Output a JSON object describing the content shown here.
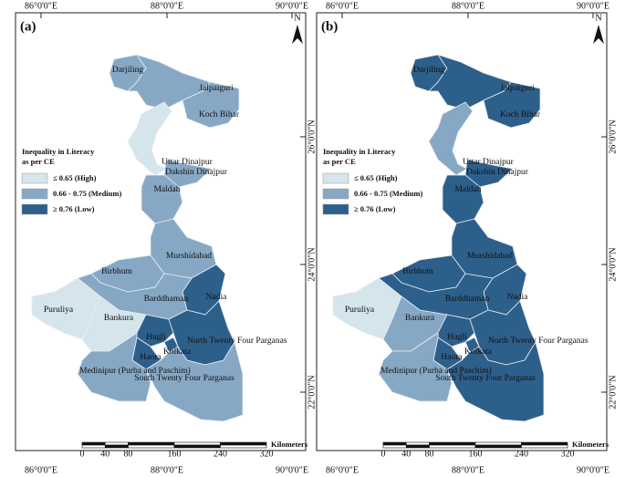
{
  "lon_ticks": [
    "86°0'0\"E",
    "88°0'0\"E",
    "90°0'0\"E"
  ],
  "lat_ticks": [
    "26°0'0\"N",
    "24°0'0\"N",
    "22°0'0\"N"
  ],
  "north": "N",
  "legend": {
    "title_lines": [
      "Inequality in Literacy",
      "as per CE"
    ],
    "items": [
      {
        "label": "≤ 0.65 (High)",
        "color": "#d4e5eb"
      },
      {
        "label": "0.66 - 0.75 (Medium)",
        "color": "#87a8c5"
      },
      {
        "label": "≥ 0.76 (Low)",
        "color": "#2d5f8b"
      }
    ]
  },
  "scale": {
    "unit": "Kilometers",
    "ticks": [
      0,
      40,
      80,
      160,
      240,
      320
    ]
  },
  "districts": [
    "Darjiling",
    "Jalpaiguri",
    "Koch Bihar",
    "Uttar Dinajpur",
    "Dakshin Dinajpur",
    "Maldah",
    "Murshidabad",
    "Birbhum",
    "Nadia",
    "Barddhaman",
    "Puruliya",
    "Bankura",
    "Hugli",
    "North Twenty Four Parganas",
    "Kolkata",
    "Haora",
    "Medinipur (Purba and Paschim)",
    "South Twenty Four Parganas"
  ],
  "panels": [
    {
      "label": "(a)",
      "classes": [
        1,
        1,
        1,
        0,
        1,
        1,
        1,
        1,
        2,
        1,
        0,
        0,
        2,
        2,
        2,
        2,
        1,
        1
      ]
    },
    {
      "label": "(b)",
      "classes": [
        2,
        2,
        2,
        1,
        2,
        2,
        2,
        2,
        2,
        2,
        0,
        1,
        2,
        2,
        2,
        2,
        1,
        2
      ]
    }
  ]
}
